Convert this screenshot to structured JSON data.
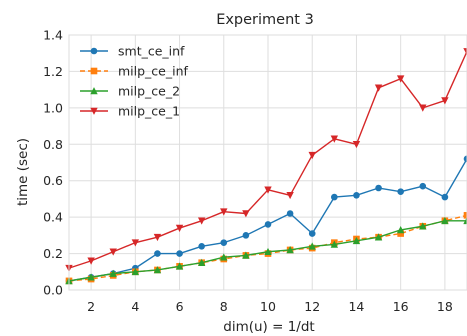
{
  "chart_data": {
    "type": "line",
    "title": "Experiment 3",
    "xlabel": "dim(u) = 1/dt",
    "ylabel": "time (sec)",
    "xlim": [
      1,
      19
    ],
    "ylim": [
      0.0,
      1.4
    ],
    "x_ticks": [
      2,
      4,
      6,
      8,
      10,
      12,
      14,
      16,
      18
    ],
    "y_ticks": [
      0.0,
      0.2,
      0.4,
      0.6,
      0.8,
      1.0,
      1.2,
      1.4
    ],
    "grid": true,
    "legend_position": "top-left",
    "x": [
      1,
      2,
      3,
      4,
      5,
      6,
      7,
      8,
      9,
      10,
      11,
      12,
      13,
      14,
      15,
      16,
      17,
      18,
      19
    ],
    "series": [
      {
        "name": "smt_ce_inf",
        "color": "#1f77b4",
        "marker": "circle",
        "line_style": "solid",
        "values": [
          0.05,
          0.07,
          0.09,
          0.12,
          0.2,
          0.2,
          0.24,
          0.26,
          0.3,
          0.36,
          0.42,
          0.31,
          0.51,
          0.52,
          0.56,
          0.54,
          0.57,
          0.51,
          0.72
        ]
      },
      {
        "name": "milp_ce_inf",
        "color": "#ff7f0e",
        "marker": "square",
        "line_style": "dashed",
        "values": [
          0.05,
          0.06,
          0.08,
          0.1,
          0.11,
          0.13,
          0.15,
          0.17,
          0.19,
          0.2,
          0.22,
          0.23,
          0.26,
          0.28,
          0.29,
          0.31,
          0.35,
          0.38,
          0.41
        ]
      },
      {
        "name": "milp_ce_2",
        "color": "#2ca02c",
        "marker": "triangle-up",
        "line_style": "solid",
        "values": [
          0.05,
          0.07,
          0.09,
          0.1,
          0.11,
          0.13,
          0.15,
          0.18,
          0.19,
          0.21,
          0.22,
          0.24,
          0.25,
          0.27,
          0.29,
          0.33,
          0.35,
          0.38,
          0.38
        ]
      },
      {
        "name": "milp_ce_1",
        "color": "#d62728",
        "marker": "triangle-down",
        "line_style": "solid",
        "values": [
          0.12,
          0.16,
          0.21,
          0.26,
          0.29,
          0.34,
          0.38,
          0.43,
          0.42,
          0.55,
          0.52,
          0.74,
          0.83,
          0.8,
          1.11,
          1.16,
          1.0,
          1.04,
          1.31
        ]
      }
    ]
  }
}
